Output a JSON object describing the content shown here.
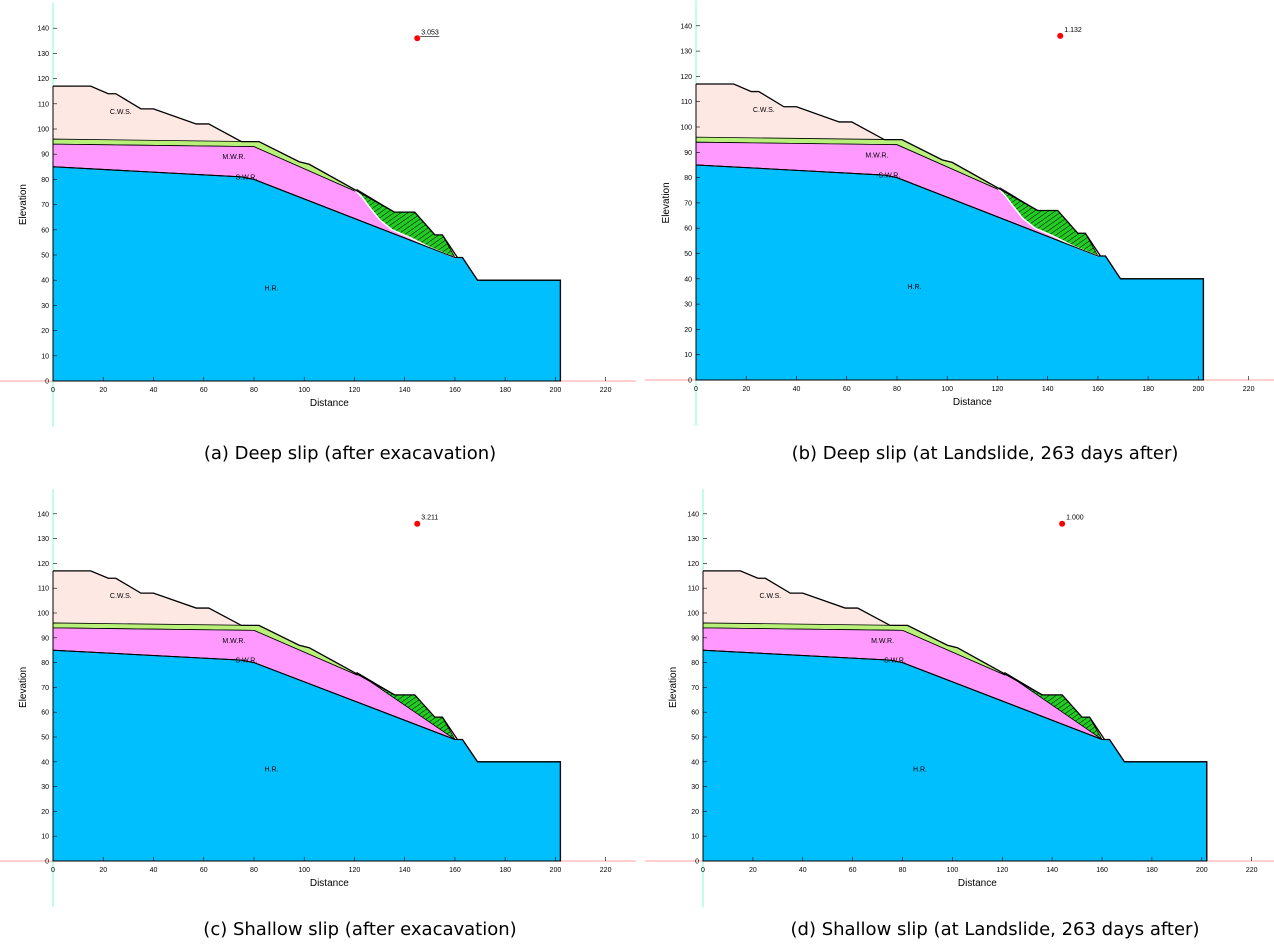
{
  "colors": {
    "hr": "#00bfff",
    "swr": "#ff99ff",
    "green_band": "#b8f07a",
    "cws": "#fde8e4",
    "slip": "#22cc22",
    "fos_dot": "#ff0000",
    "y_axis_line": "#7fffd4",
    "x_axis_line": "#ff9f9f"
  },
  "axes": {
    "xlabel": "Distance",
    "ylabel": "Elevation",
    "x_ticks": [
      "0",
      "20",
      "40",
      "60",
      "80",
      "100",
      "120",
      "140",
      "160",
      "180",
      "200",
      "220"
    ],
    "y_ticks": [
      "0",
      "10",
      "20",
      "30",
      "40",
      "50",
      "60",
      "70",
      "80",
      "90",
      "100",
      "110",
      "120",
      "130",
      "140"
    ],
    "xlim": [
      0,
      220
    ],
    "ylim": [
      0,
      140
    ]
  },
  "layer_labels": {
    "cws": "C.W.S.",
    "mwr": "M.W.R.",
    "swr": "S.W.R.",
    "hr": "H.R."
  },
  "panels": [
    {
      "caption": "(a) Deep slip (after exacavation)",
      "fos": "3.053",
      "slip_type": "deep"
    },
    {
      "caption": "(b) Deep slip (at Landslide, 263 days after)",
      "fos": "1.132",
      "slip_type": "deep"
    },
    {
      "caption": "(c) Shallow slip (after exacavation)",
      "fos": "3.211",
      "slip_type": "shallow"
    },
    {
      "caption": "(d) Shallow slip (at Landslide, 263 days after)",
      "fos": "1.000",
      "slip_type": "shallow"
    }
  ]
}
